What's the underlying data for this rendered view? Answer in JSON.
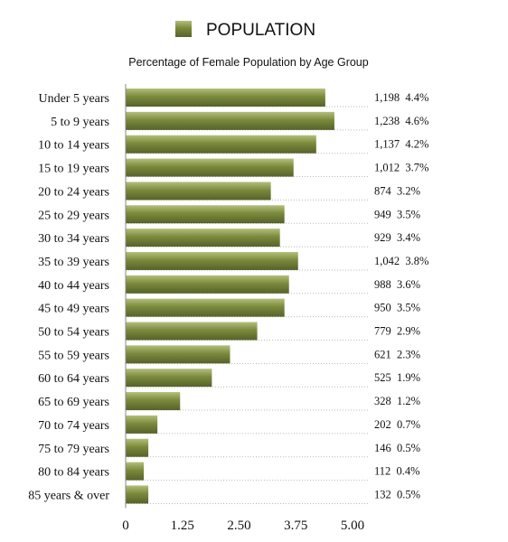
{
  "chart_data": {
    "type": "bar",
    "orientation": "horizontal",
    "series": [
      {
        "name": "POPULATION",
        "values": [
          4.4,
          4.6,
          4.2,
          3.7,
          3.2,
          3.5,
          3.4,
          3.8,
          3.6,
          3.5,
          2.9,
          2.3,
          1.9,
          1.2,
          0.7,
          0.5,
          0.4,
          0.5
        ]
      }
    ],
    "categories": [
      "Under 5 years",
      "5 to 9 years",
      "10 to 14 years",
      "15 to 19 years",
      "20 to 24 years",
      "25 to 29 years",
      "30 to 34 years",
      "35 to 39 years",
      "40 to 44 years",
      "45 to 49 years",
      "50 to 54 years",
      "55 to 59 years",
      "60 to 64 years",
      "65 to 69 years",
      "70 to 74 years",
      "75 to 79 years",
      "80 to 84 years",
      "85 years & over"
    ],
    "value_labels": [
      "1,198  4.4%",
      "1,238  4.6%",
      "1,137  4.2%",
      "1,012  3.7%",
      "874  3.2%",
      "949  3.5%",
      "929  3.4%",
      "1,042  3.8%",
      "988  3.6%",
      "950  3.5%",
      "779  2.9%",
      "621  2.3%",
      "525  1.9%",
      "328  1.2%",
      "202  0.7%",
      "146  0.5%",
      "112  0.4%",
      "132  0.5%"
    ],
    "title": "",
    "subtitle": "Percentage of Female Population by Age Group",
    "xlabel": "",
    "ylabel": "",
    "xlim": [
      0,
      5
    ],
    "xticks": [
      0,
      1.25,
      2.5,
      3.75,
      5
    ],
    "xtick_labels": [
      "0",
      "1.25",
      "2.50",
      "3.75",
      "5.00"
    ],
    "legend_position": "top",
    "grid": false,
    "bar_color": "#7a8a3c",
    "bar_color_light": "#b3bf7a",
    "bar_color_dark": "#56622a"
  }
}
